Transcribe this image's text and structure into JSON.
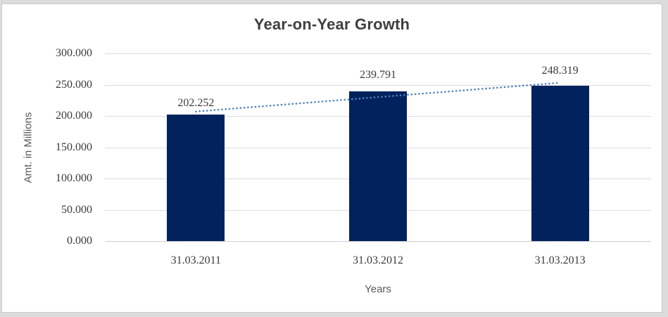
{
  "chart_data": {
    "type": "bar",
    "title": "Year-on-Year Growth",
    "categories": [
      "31.03.2011",
      "31.03.2012",
      "31.03.2013"
    ],
    "values": [
      202.252,
      239.791,
      248.319
    ],
    "data_labels": [
      "202.252",
      "239.791",
      "248.319"
    ],
    "xlabel": "Years",
    "ylabel": "Amt. in Millions",
    "ylim": [
      0,
      300
    ],
    "ytick_step": 50,
    "ytick_labels": [
      "0.000",
      "50.000",
      "100.000",
      "150.000",
      "200.000",
      "250.000",
      "300.000"
    ],
    "grid": true,
    "legend": false,
    "colors": {
      "bar": "#02225E",
      "trendline": "#4F81BD",
      "gridline": "#DCDCDC",
      "axis_line": "#CFCFCF",
      "title_text": "#3F3F3F",
      "tick_text": "#3A3A3A",
      "axis_title_text": "#595959",
      "frame_border": "#C9C9C9",
      "background": "#FFFFFF",
      "outer_background": "#DCDCDC"
    },
    "trendline": {
      "type": "linear",
      "style": "dotted"
    }
  }
}
